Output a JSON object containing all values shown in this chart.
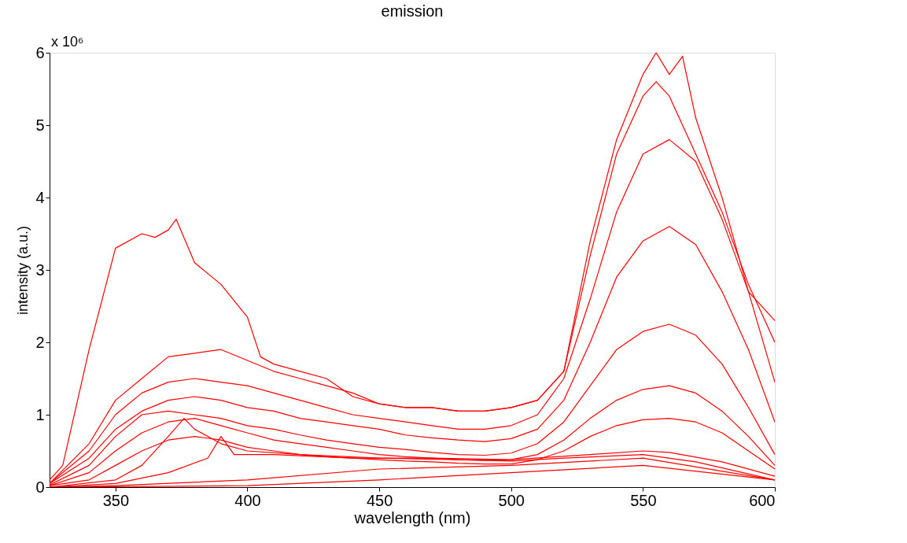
{
  "chart_data": {
    "type": "line",
    "title": "emission",
    "xlabel": "wavelength (nm)",
    "ylabel": "intensity (a.u.)",
    "annotations": [
      "x 10⁶"
    ],
    "xlim": [
      325,
      600
    ],
    "xticks": [
      350,
      400,
      450,
      500,
      550,
      600
    ],
    "ylim": [
      0,
      6
    ],
    "yticks": [
      0,
      1,
      2,
      3,
      4,
      5,
      6
    ],
    "grid": false,
    "legend": false,
    "marker": "none",
    "line_style": "solid",
    "series": [
      {
        "color": "#ff0000",
        "x": [
          325,
          330,
          340,
          350,
          360,
          365,
          370,
          373,
          380,
          390,
          400,
          405,
          410,
          420,
          430,
          440,
          450,
          460,
          470,
          480,
          490,
          500,
          510,
          520,
          530,
          540,
          550,
          555,
          560,
          565,
          570,
          580,
          590,
          600
        ],
        "values": [
          0.1,
          0.3,
          1.9,
          3.3,
          3.5,
          3.45,
          3.55,
          3.7,
          3.1,
          2.8,
          2.35,
          1.8,
          1.7,
          1.6,
          1.5,
          1.25,
          1.15,
          1.1,
          1.1,
          1.05,
          1.05,
          1.1,
          1.2,
          1.6,
          3.4,
          4.8,
          5.7,
          6.0,
          5.7,
          5.95,
          5.1,
          4.0,
          2.7,
          2.3
        ]
      },
      {
        "color": "#ff0000",
        "x": [
          325,
          340,
          350,
          360,
          370,
          380,
          390,
          400,
          410,
          420,
          430,
          440,
          450,
          460,
          470,
          480,
          490,
          500,
          510,
          520,
          530,
          540,
          550,
          555,
          560,
          570,
          580,
          590,
          600
        ],
        "values": [
          0.05,
          0.6,
          1.2,
          1.5,
          1.8,
          1.85,
          1.9,
          1.75,
          1.6,
          1.5,
          1.4,
          1.3,
          1.15,
          1.1,
          1.1,
          1.05,
          1.05,
          1.1,
          1.2,
          1.6,
          3.2,
          4.6,
          5.4,
          5.6,
          5.4,
          4.6,
          3.8,
          2.8,
          2.0
        ]
      },
      {
        "color": "#ff0000",
        "x": [
          325,
          340,
          350,
          360,
          370,
          380,
          390,
          400,
          410,
          420,
          430,
          440,
          450,
          460,
          470,
          480,
          490,
          500,
          510,
          520,
          530,
          540,
          550,
          560,
          570,
          580,
          590,
          600
        ],
        "values": [
          0.05,
          0.5,
          1.0,
          1.3,
          1.45,
          1.5,
          1.45,
          1.4,
          1.3,
          1.2,
          1.1,
          1.0,
          0.95,
          0.9,
          0.85,
          0.8,
          0.8,
          0.85,
          1.0,
          1.5,
          2.6,
          3.8,
          4.6,
          4.8,
          4.5,
          3.7,
          2.7,
          1.45
        ]
      },
      {
        "color": "#ff0000",
        "x": [
          325,
          340,
          350,
          360,
          370,
          380,
          390,
          400,
          410,
          420,
          430,
          440,
          450,
          460,
          470,
          480,
          490,
          500,
          510,
          520,
          530,
          540,
          550,
          560,
          570,
          580,
          590,
          600
        ],
        "values": [
          0.05,
          0.4,
          0.8,
          1.05,
          1.2,
          1.25,
          1.2,
          1.1,
          1.05,
          0.95,
          0.9,
          0.85,
          0.8,
          0.72,
          0.68,
          0.65,
          0.63,
          0.67,
          0.8,
          1.2,
          2.0,
          2.9,
          3.4,
          3.6,
          3.35,
          2.7,
          1.9,
          0.9
        ]
      },
      {
        "color": "#ff0000",
        "x": [
          325,
          340,
          350,
          360,
          370,
          380,
          390,
          400,
          410,
          420,
          430,
          440,
          450,
          460,
          470,
          480,
          490,
          500,
          510,
          520,
          530,
          540,
          550,
          560,
          570,
          580,
          590,
          600
        ],
        "values": [
          0.03,
          0.3,
          0.7,
          1.0,
          1.05,
          1.0,
          0.95,
          0.85,
          0.8,
          0.72,
          0.65,
          0.6,
          0.55,
          0.52,
          0.48,
          0.45,
          0.44,
          0.47,
          0.6,
          0.9,
          1.4,
          1.9,
          2.15,
          2.25,
          2.1,
          1.7,
          1.1,
          0.45
        ]
      },
      {
        "color": "#ff0000",
        "x": [
          325,
          340,
          350,
          360,
          370,
          380,
          390,
          400,
          410,
          420,
          430,
          440,
          450,
          460,
          470,
          480,
          490,
          500,
          510,
          520,
          530,
          540,
          550,
          560,
          570,
          580,
          590,
          600
        ],
        "values": [
          0.02,
          0.2,
          0.5,
          0.75,
          0.9,
          0.95,
          0.85,
          0.75,
          0.65,
          0.6,
          0.55,
          0.5,
          0.45,
          0.42,
          0.4,
          0.38,
          0.37,
          0.38,
          0.45,
          0.65,
          0.95,
          1.2,
          1.35,
          1.4,
          1.3,
          1.05,
          0.7,
          0.3
        ]
      },
      {
        "color": "#ff0000",
        "x": [
          325,
          340,
          350,
          360,
          370,
          380,
          390,
          400,
          410,
          420,
          430,
          440,
          450,
          460,
          470,
          480,
          490,
          500,
          510,
          520,
          530,
          540,
          550,
          560,
          570,
          580,
          590,
          600
        ],
        "values": [
          0.02,
          0.1,
          0.3,
          0.5,
          0.65,
          0.7,
          0.65,
          0.55,
          0.5,
          0.45,
          0.42,
          0.4,
          0.38,
          0.36,
          0.35,
          0.33,
          0.32,
          0.32,
          0.38,
          0.5,
          0.7,
          0.85,
          0.93,
          0.95,
          0.9,
          0.75,
          0.5,
          0.25
        ]
      },
      {
        "color": "#ff0000",
        "x": [
          325,
          350,
          360,
          370,
          376,
          380,
          390,
          400,
          420,
          450,
          480,
          500,
          520,
          550,
          570,
          600
        ],
        "values": [
          0.0,
          0.1,
          0.3,
          0.7,
          0.95,
          0.8,
          0.6,
          0.5,
          0.45,
          0.4,
          0.38,
          0.36,
          0.4,
          0.45,
          0.35,
          0.1
        ]
      },
      {
        "color": "#ff0000",
        "x": [
          325,
          350,
          370,
          385,
          390,
          395,
          410,
          440,
          470,
          500,
          530,
          550,
          560,
          580,
          600
        ],
        "values": [
          0.0,
          0.05,
          0.2,
          0.4,
          0.7,
          0.45,
          0.45,
          0.4,
          0.4,
          0.38,
          0.45,
          0.5,
          0.48,
          0.35,
          0.15
        ]
      },
      {
        "color": "#ff0000",
        "x": [
          325,
          350,
          400,
          450,
          500,
          550,
          600
        ],
        "values": [
          0.0,
          0.02,
          0.1,
          0.25,
          0.3,
          0.4,
          0.1
        ]
      },
      {
        "color": "#ff0000",
        "x": [
          325,
          400,
          450,
          500,
          550,
          600
        ],
        "values": [
          0.0,
          0.02,
          0.1,
          0.2,
          0.3,
          0.1
        ]
      }
    ]
  }
}
